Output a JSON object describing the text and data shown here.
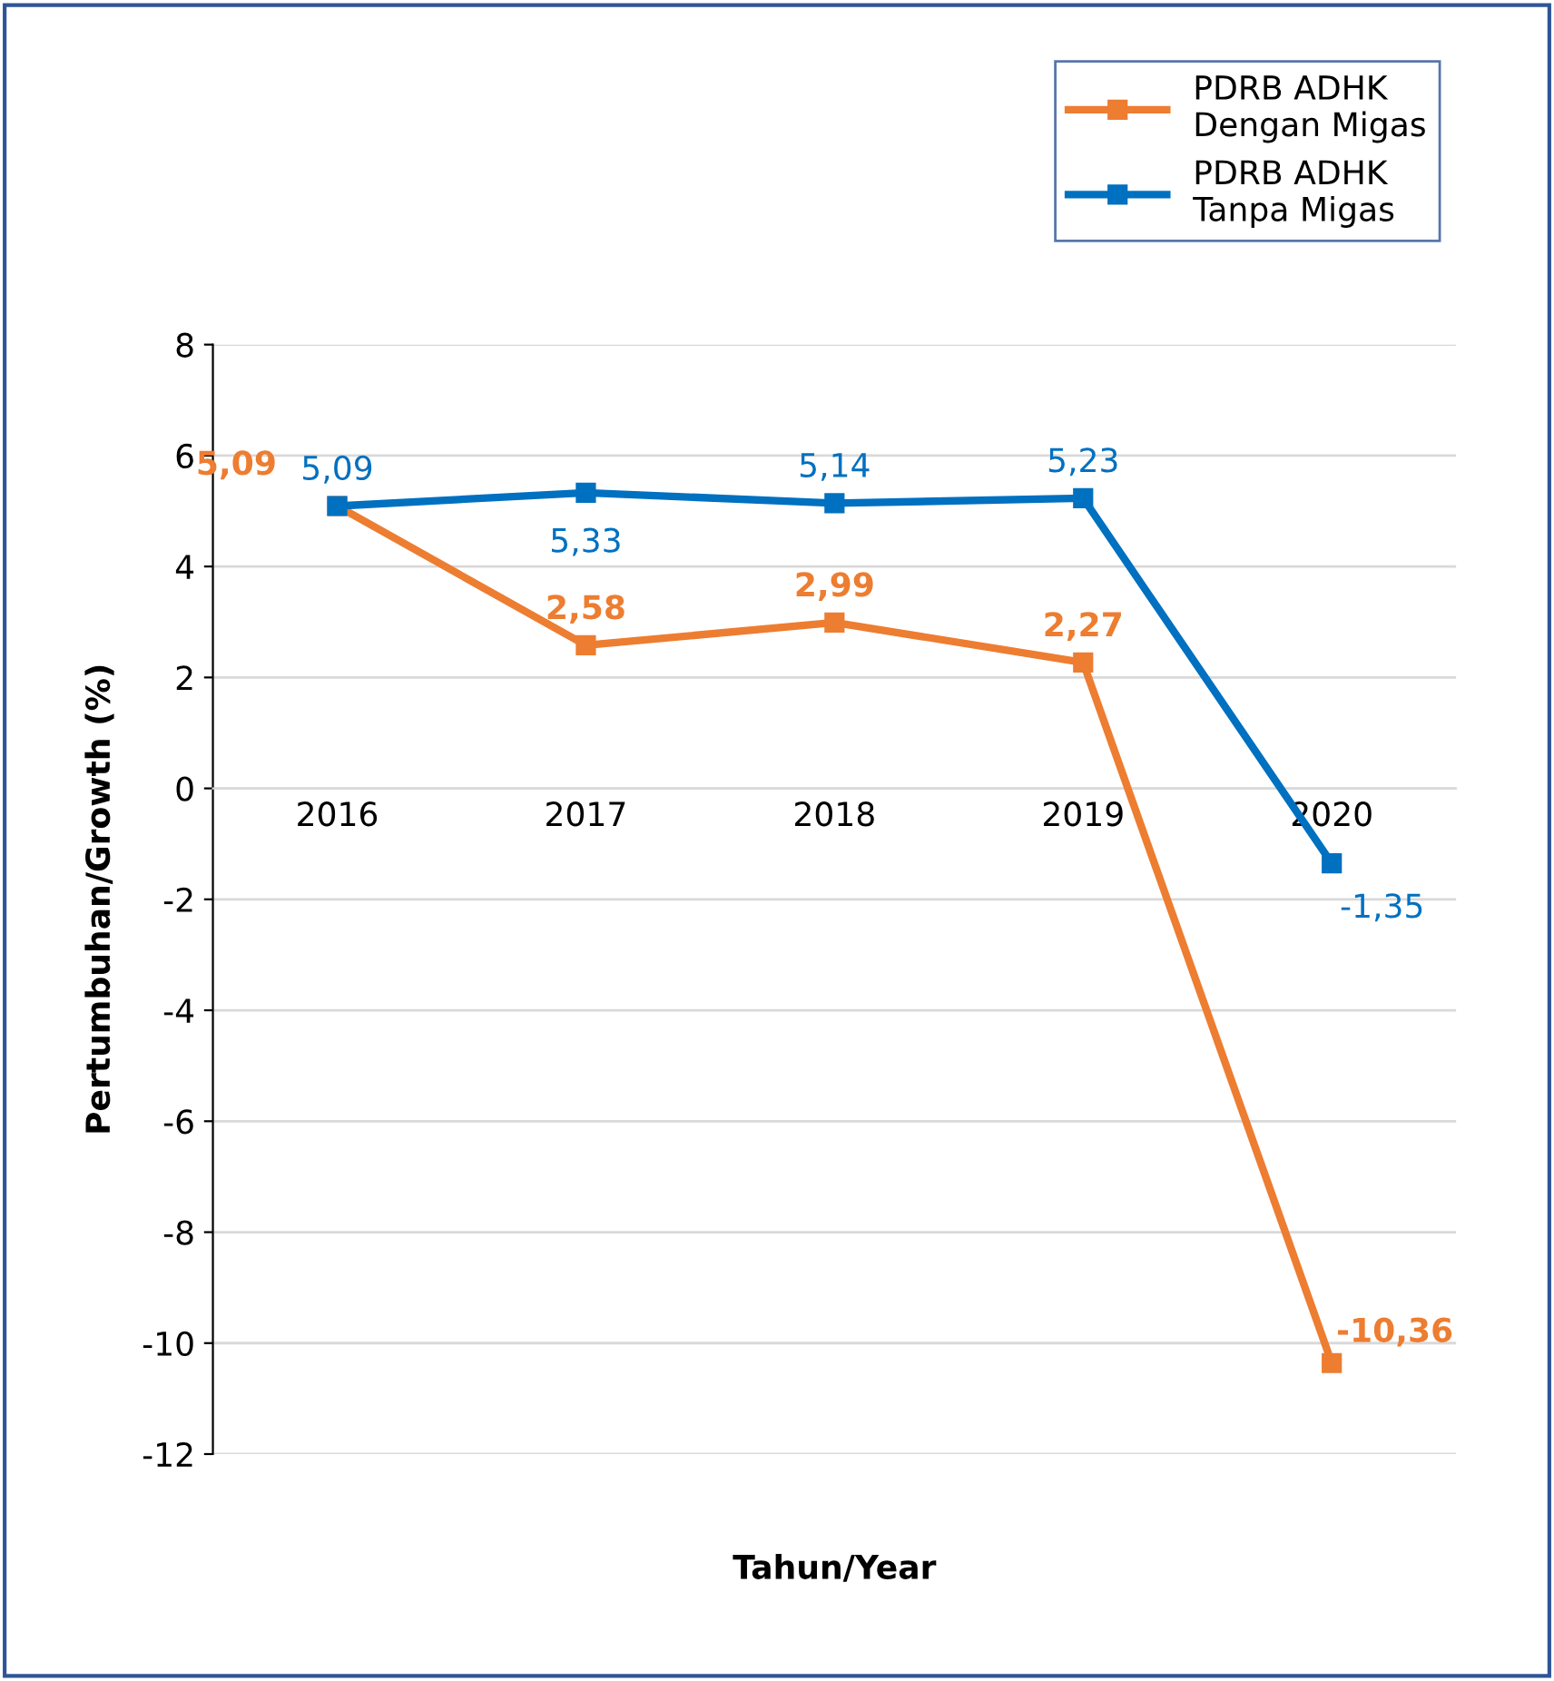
{
  "chart_data": {
    "type": "line",
    "xlabel": "Tahun/Year",
    "ylabel": "Pertumbuhan/Growth (%)",
    "categories": [
      "2016",
      "2017",
      "2018",
      "2019",
      "2020"
    ],
    "series": [
      {
        "name": "PDRB ADHK Dengan Migas",
        "color": "#ed7d31",
        "values": [
          5.09,
          2.58,
          2.99,
          2.27,
          -10.36
        ],
        "value_labels": [
          "5,09",
          "2,58",
          "2,99",
          "2,27",
          "-10,36"
        ]
      },
      {
        "name": "PDRB ADHK Tanpa Migas",
        "color": "#0070c0",
        "values": [
          5.09,
          5.33,
          5.14,
          5.23,
          -1.35
        ],
        "value_labels": [
          "5,09",
          "5,33",
          "5,14",
          "5,23",
          "-1,35"
        ]
      }
    ],
    "ylim": [
      -12,
      8
    ],
    "yticks": [
      -12,
      -10,
      -8,
      -6,
      -4,
      -2,
      0,
      2,
      4,
      6,
      8
    ],
    "grid": "y",
    "legend": "top right",
    "marker": "square",
    "line_style": "solid"
  }
}
